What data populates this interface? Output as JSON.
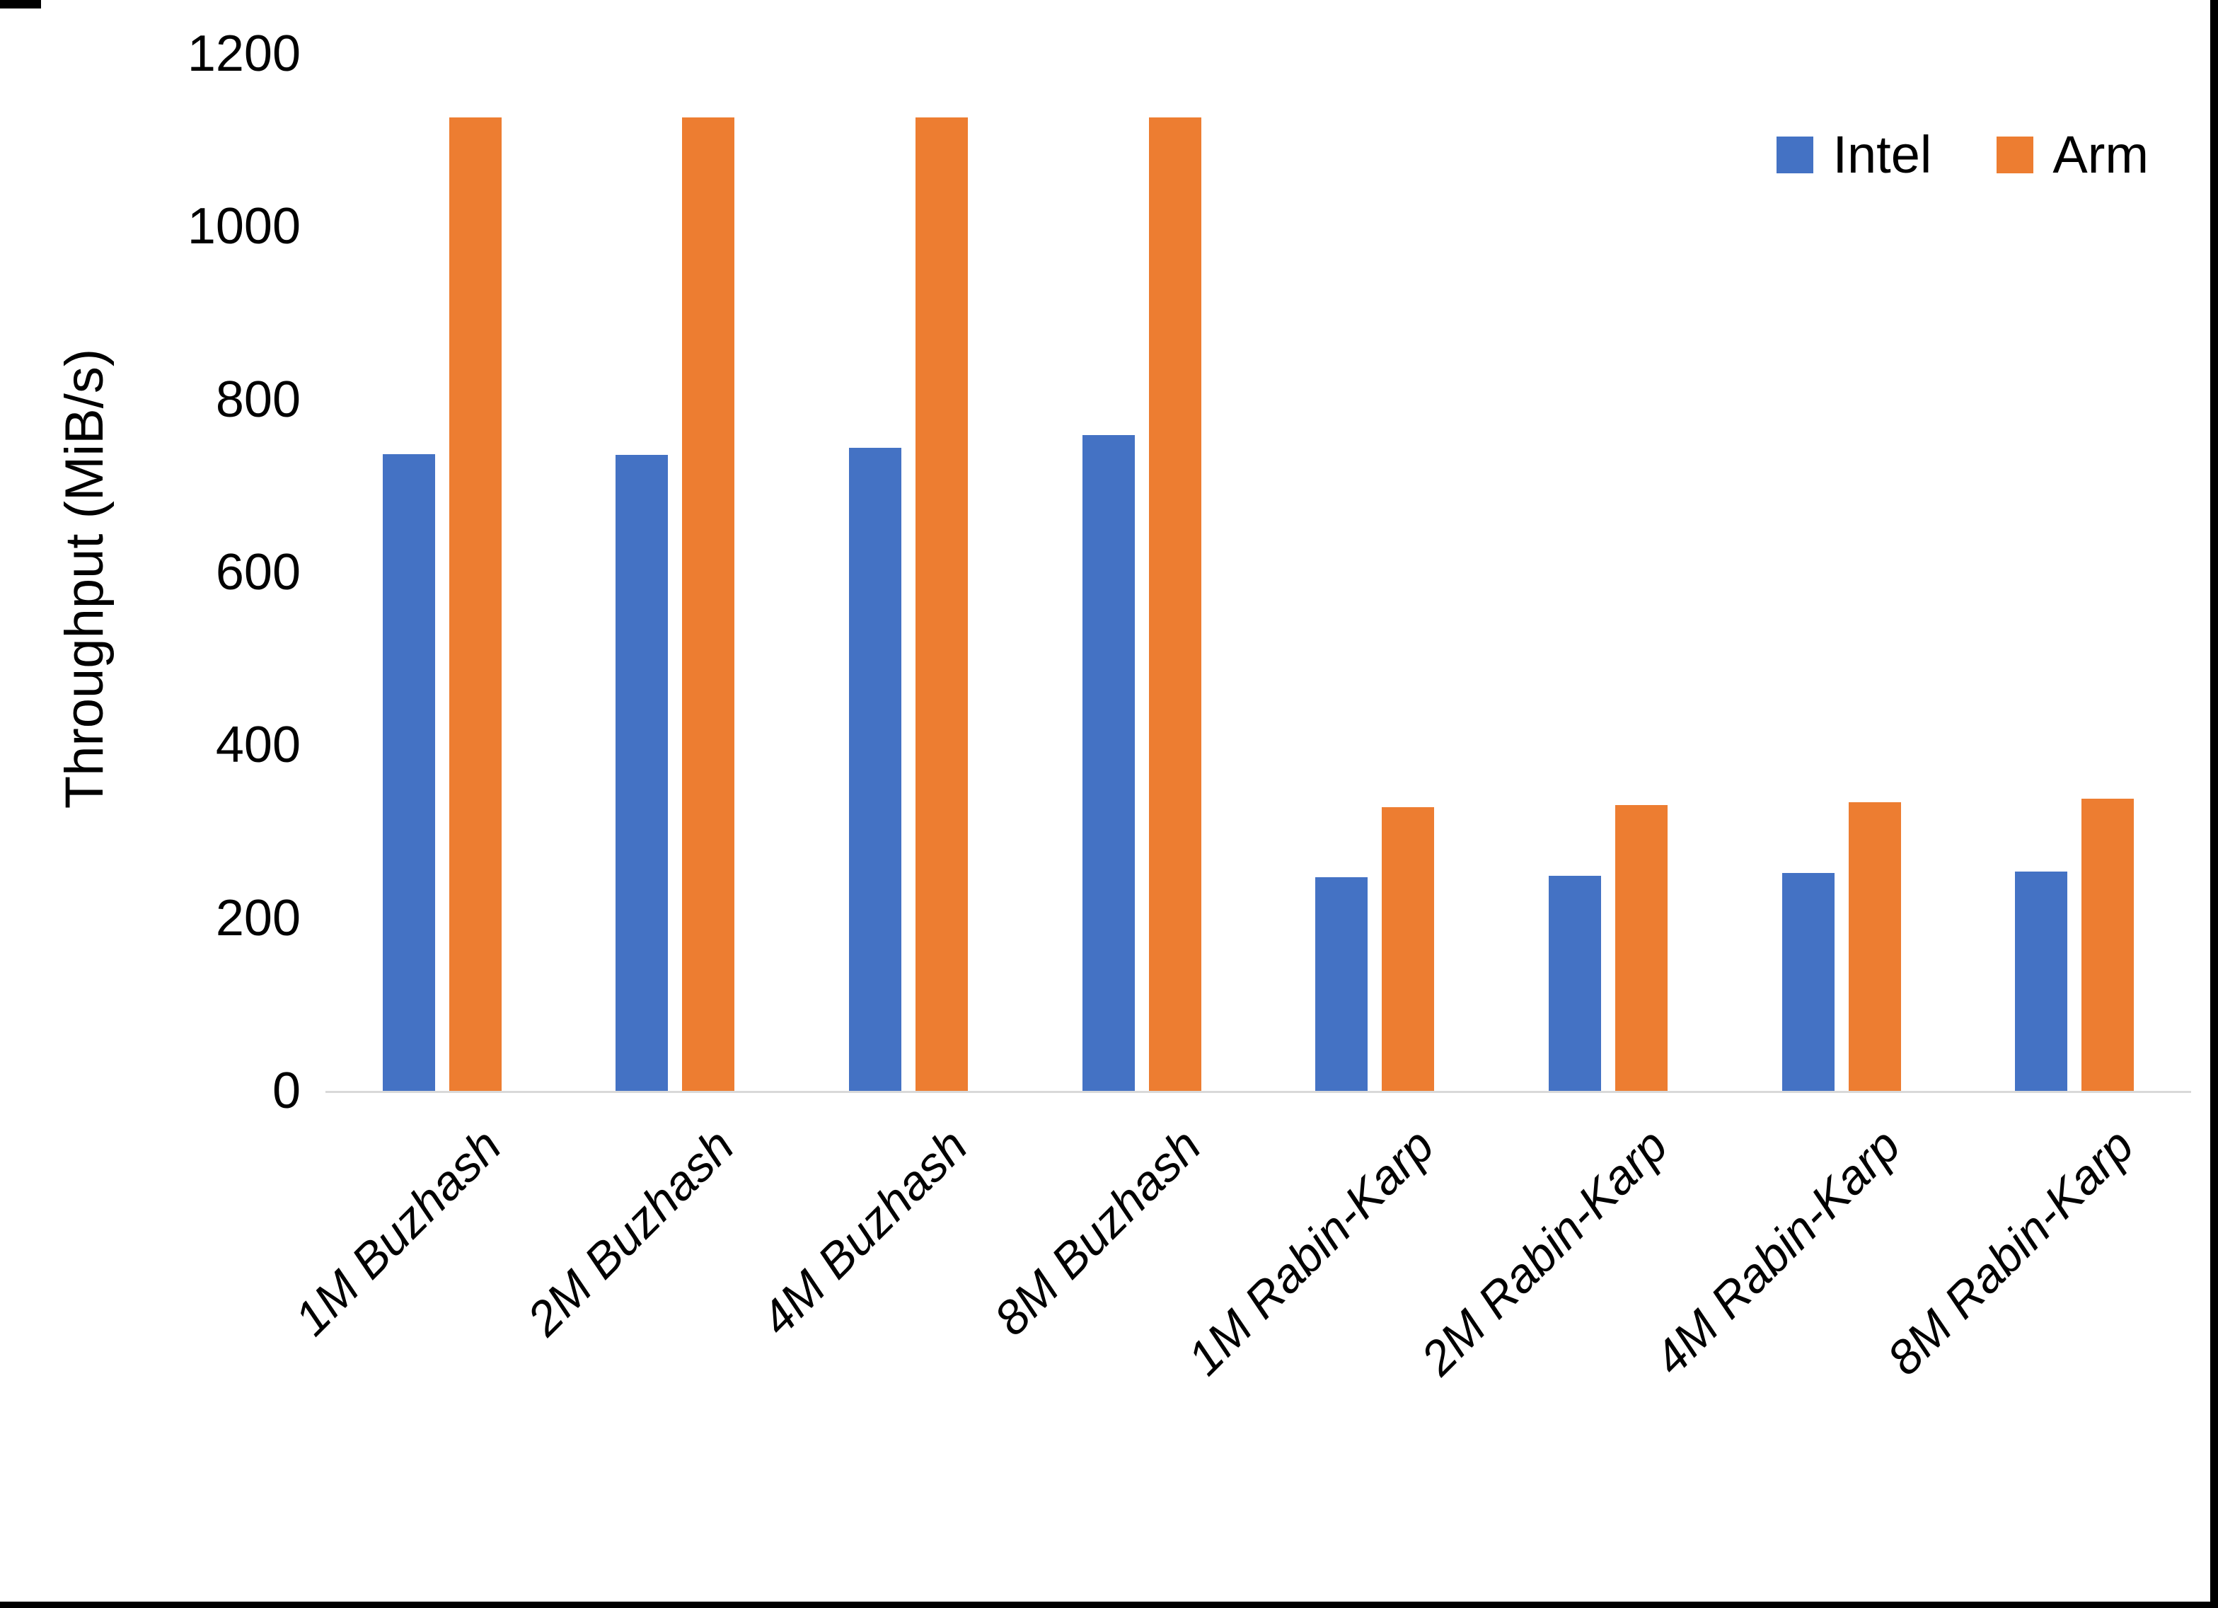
{
  "chart_data": {
    "type": "bar",
    "title": "",
    "ylabel": "Throughput (MiB/s)",
    "xlabel": "",
    "ylim": [
      0,
      1200
    ],
    "yticks": [
      0,
      200,
      400,
      600,
      800,
      1000,
      1200
    ],
    "grid": false,
    "legend_position": "top-right",
    "axis_line_color": "#d9d9d9",
    "text_color": "#000000",
    "categories": [
      "1M Buzhash",
      "2M Buzhash",
      "4M Buzhash",
      "8M Buzhash",
      "1M Rabin-Karp",
      "2M Rabin-Karp",
      "4M Rabin-Karp",
      "8M Rabin-Karp"
    ],
    "series": [
      {
        "name": "Intel",
        "color": "#4472c4",
        "values": [
          737,
          736,
          744,
          759,
          247,
          249,
          252,
          254
        ]
      },
      {
        "name": "Arm",
        "color": "#ed7d31",
        "values": [
          1126,
          1126,
          1126,
          1126,
          328,
          331,
          334,
          338
        ]
      }
    ]
  }
}
